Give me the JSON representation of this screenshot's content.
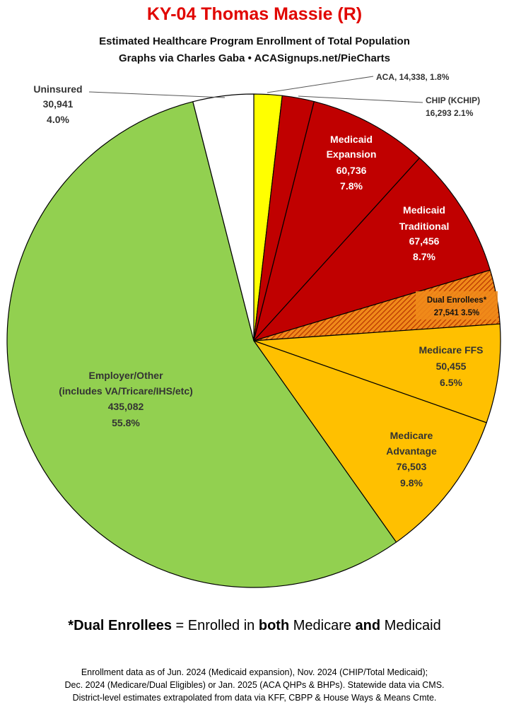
{
  "header": {
    "title": "KY-04 Thomas Massie (R)",
    "subtitle_line1": "Estimated Healthcare Program Enrollment of Total Population",
    "subtitle_line2": "Graphs via Charles Gaba  •  ACASignups.net/PieCharts"
  },
  "chart_data": {
    "type": "pie",
    "title": "KY-04 Thomas Massie (R)",
    "slices": [
      {
        "label": "ACA",
        "value": 14338,
        "value_text": "14,338",
        "percent": "1.8%",
        "color": "#ffff00",
        "text_color": "#222222"
      },
      {
        "label": "CHIP (KCHIP)",
        "value": 16293,
        "value_text": "16,293",
        "percent": "2.1%",
        "color": "#c00000",
        "text_color": "#222222"
      },
      {
        "label": "Medicaid Expansion",
        "value": 60736,
        "value_text": "60,736",
        "percent": "7.8%",
        "color": "#c00000",
        "text_color": "#ffffff"
      },
      {
        "label": "Medicaid Traditional",
        "value": 67456,
        "value_text": "67,456",
        "percent": "8.7%",
        "color": "#c00000",
        "text_color": "#ffffff"
      },
      {
        "label": "Dual Enrollees*",
        "value": 27541,
        "value_text": "27,541",
        "percent": "3.5%",
        "color": "#e07000",
        "hatched": true,
        "text_color": "#111111"
      },
      {
        "label": "Medicare FFS",
        "value": 50455,
        "value_text": "50,455",
        "percent": "6.5%",
        "color": "#ffc000",
        "text_color": "#333333"
      },
      {
        "label": "Medicare Advantage",
        "value": 76503,
        "value_text": "76,503",
        "percent": "9.8%",
        "color": "#ffc000",
        "text_color": "#333333"
      },
      {
        "label": "Employer/Other (includes VA/Tricare/IHS/etc)",
        "value": 435082,
        "value_text": "435,082",
        "percent": "55.8%",
        "color": "#92d050",
        "text_color": "#333333"
      },
      {
        "label": "Uninsured",
        "value": 30941,
        "value_text": "30,941",
        "percent": "4.0%",
        "color": "#ffffff",
        "text_color": "#333333"
      }
    ],
    "start": "12 o'clock",
    "direction": "clockwise",
    "legend": "none"
  },
  "labels": {
    "aca": "ACA, 14,338, 1.8%",
    "chip_name": "CHIP (KCHIP)",
    "chip_vals": "16,293 2.1%",
    "mexp_1": "Medicaid",
    "mexp_2": "Expansion",
    "mexp_3": "60,736",
    "mexp_4": "7.8%",
    "mtrad_1": "Medicaid",
    "mtrad_2": "Traditional",
    "mtrad_3": "67,456",
    "mtrad_4": "8.7%",
    "dual_1": "Dual Enrollees*",
    "dual_2": "27,541 3.5%",
    "ffs_1": "Medicare FFS",
    "ffs_2": "50,455",
    "ffs_3": "6.5%",
    "adv_1": "Medicare",
    "adv_2": "Advantage",
    "adv_3": "76,503",
    "adv_4": "9.8%",
    "emp_1": "Employer/Other",
    "emp_2": "(includes VA/Tricare/IHS/etc)",
    "emp_3": "435,082",
    "emp_4": "55.8%",
    "unins_1": "Uninsured",
    "unins_2": "30,941",
    "unins_3": "4.0%"
  },
  "note": {
    "prefix": "*",
    "term": "Dual Enrollees",
    "mid1": " = Enrolled in ",
    "both": "both",
    "mid2": " Medicare ",
    "and": "and",
    "suffix": " Medicaid"
  },
  "footer": {
    "line1": "Enrollment data as of Jun. 2024 (Medicaid expansion), Nov. 2024 (CHIP/Total Medicaid);",
    "line2": "Dec. 2024 (Medicare/Dual Eligibles) or Jan. 2025 (ACA QHPs & BHPs). Statewide data via CMS.",
    "line3": "District-level estimates extrapolated from data via KFF, CBPP & House Ways & Means Cmte."
  }
}
